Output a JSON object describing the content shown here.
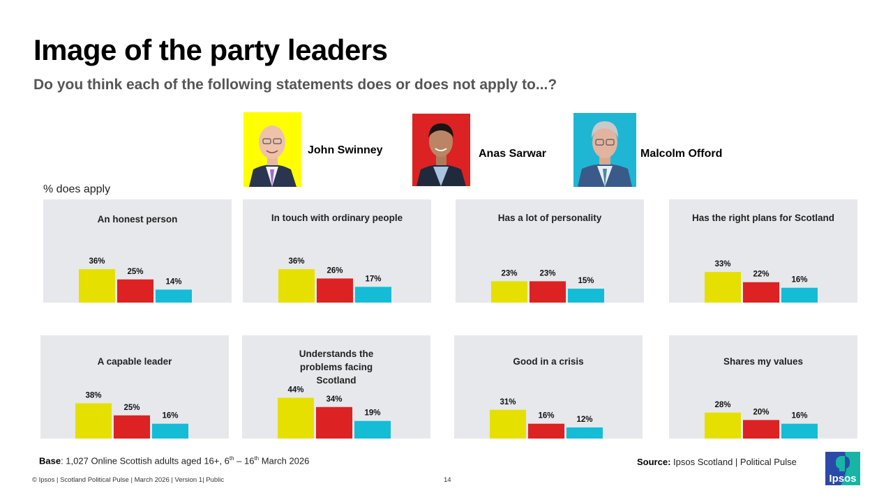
{
  "header": {
    "title": "Image of the party leaders",
    "subtitle": "Do you think each of the following statements does or does not apply to...?"
  },
  "leaders": [
    {
      "name": "John Swinney",
      "color": "#e5e000",
      "photo_bg": "#ffff00"
    },
    {
      "name": "Anas Sarwar",
      "color": "#dc2222",
      "photo_bg": "#dc2222"
    },
    {
      "name": "Malcolm Offord",
      "color": "#14bcd6",
      "photo_bg": "#1fb6d4"
    }
  ],
  "unit_label": "% does apply",
  "chart_data": {
    "type": "bar",
    "title": "Image of the party leaders",
    "subtitle": "Do you think each of the following statements does or does not apply to...?",
    "ylabel": "% does apply",
    "xlabel": "",
    "ylim": [
      0,
      100
    ],
    "grid": false,
    "legend": "top (leader photos with names)",
    "series_names": [
      "John Swinney",
      "Anas Sarwar",
      "Malcolm Offord"
    ],
    "series_colors": [
      "#e5e000",
      "#dc2222",
      "#14bcd6"
    ],
    "panels": [
      {
        "title": "An honest person",
        "values": [
          36,
          25,
          14
        ],
        "labels": [
          "36%",
          "25%",
          "14%"
        ]
      },
      {
        "title": "In touch with ordinary people",
        "values": [
          36,
          26,
          17
        ],
        "labels": [
          "36%",
          "26%",
          "17%"
        ]
      },
      {
        "title": "Has a lot of personality",
        "values": [
          23,
          23,
          15
        ],
        "labels": [
          "23%",
          "23%",
          "15%"
        ]
      },
      {
        "title": "Has the right plans for Scotland",
        "values": [
          33,
          22,
          16
        ],
        "labels": [
          "33%",
          "22%",
          "16%"
        ]
      },
      {
        "title": "A capable leader",
        "values": [
          38,
          25,
          16
        ],
        "labels": [
          "38%",
          "25%",
          "16%"
        ]
      },
      {
        "title": "Understands the problems facing Scotland",
        "values": [
          44,
          34,
          19
        ],
        "labels": [
          "44%",
          "34%",
          "19%"
        ]
      },
      {
        "title": "Good in a crisis",
        "values": [
          31,
          16,
          12
        ],
        "labels": [
          "31%",
          "16%",
          "12%"
        ]
      },
      {
        "title": "Shares my values",
        "values": [
          28,
          20,
          16
        ],
        "labels": [
          "28%",
          "20%",
          "16%"
        ]
      }
    ]
  },
  "notes": {
    "base_label": "Base",
    "base_text_1": ": 1,027 Online Scottish adults aged 16+, 6",
    "base_sup_1": "th",
    "base_text_2": " – 16",
    "base_sup_2": "th",
    "base_text_3": " March 2026",
    "source_label": "Source:",
    "source_text": " Ipsos Scotland | Political Pulse"
  },
  "footer": {
    "text": "© Ipsos | Scotland Political Pulse  | March 2026  | Version 1| Public",
    "page_number": "14",
    "logo_text": "Ipsos"
  }
}
